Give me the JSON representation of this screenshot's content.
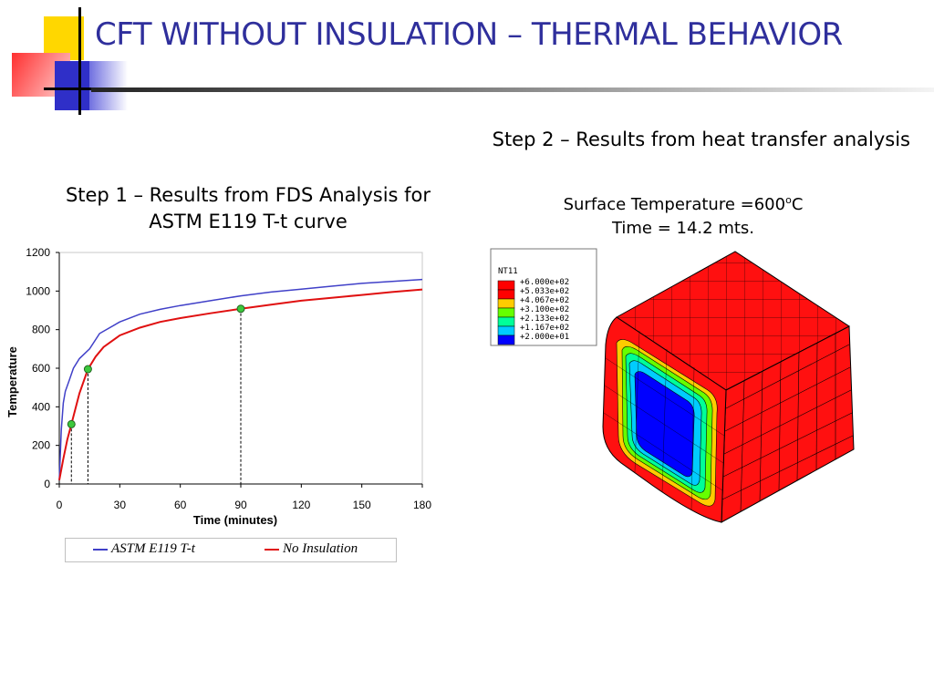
{
  "slide": {
    "title": "CFT WITHOUT INSULATION – THERMAL BEHAVIOR",
    "step2_caption": "Step 2 – Results from heat transfer analysis",
    "step1_caption_line1": "Step 1 – Results from FDS Analysis for",
    "step1_caption_line2": "ASTM E119 T-t curve",
    "surface_line1_prefix": "Surface Temperature =600",
    "surface_line1_sup": "o",
    "surface_line1_suffix": "C",
    "surface_line2": "Time = 14.2 mts.",
    "accent_color": "#2f2f9c"
  },
  "chart_data": {
    "type": "line",
    "xlabel": "Time (minutes)",
    "ylabel": "Temperature",
    "xlim": [
      0,
      180
    ],
    "ylim": [
      0,
      1200
    ],
    "xticks": [
      0,
      30,
      60,
      90,
      120,
      150,
      180
    ],
    "yticks": [
      0,
      200,
      400,
      600,
      800,
      1000,
      1200
    ],
    "grid": false,
    "legend_position": "bottom",
    "series": [
      {
        "name": "ASTM E119 T-t",
        "color": "#4040c8",
        "x": [
          0,
          1,
          2,
          3,
          5,
          7,
          10,
          15,
          20,
          30,
          40,
          50,
          60,
          75,
          90,
          105,
          120,
          135,
          150,
          165,
          180
        ],
        "y": [
          20,
          280,
          420,
          480,
          540,
          600,
          650,
          700,
          780,
          840,
          880,
          905,
          925,
          950,
          975,
          995,
          1010,
          1025,
          1040,
          1050,
          1060
        ]
      },
      {
        "name": "No Insulation",
        "color": "#e01010",
        "x": [
          0,
          2,
          4,
          6,
          8,
          10,
          14.2,
          18,
          22,
          30,
          40,
          50,
          60,
          75,
          90,
          105,
          120,
          135,
          150,
          165,
          180
        ],
        "y": [
          20,
          130,
          230,
          310,
          390,
          470,
          595,
          660,
          710,
          770,
          810,
          840,
          860,
          885,
          908,
          930,
          950,
          965,
          980,
          995,
          1008
        ]
      }
    ],
    "markers": [
      {
        "x": 6,
        "y": 310
      },
      {
        "x": 14.2,
        "y": 595
      },
      {
        "x": 90,
        "y": 908
      }
    ],
    "marker_color": "#3cc83c"
  },
  "contour_legend": {
    "variable": "NT11",
    "levels": [
      {
        "label": "+6.000e+02",
        "color": "#ff0000"
      },
      {
        "label": "+5.033e+02",
        "color": "#ff0000"
      },
      {
        "label": "+4.067e+02",
        "color": "#ffcc00"
      },
      {
        "label": "+3.100e+02",
        "color": "#66ff00"
      },
      {
        "label": "+2.133e+02",
        "color": "#00ff99"
      },
      {
        "label": "+1.167e+02",
        "color": "#00ccff"
      },
      {
        "label": "+2.000e+01",
        "color": "#0000ff"
      }
    ]
  }
}
